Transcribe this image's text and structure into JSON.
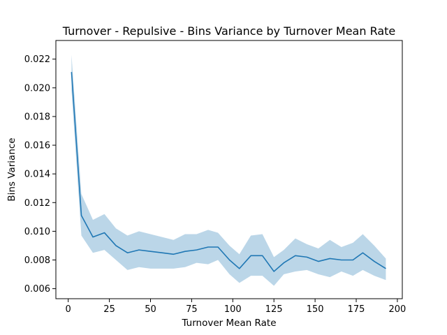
{
  "chart_data": {
    "type": "line",
    "title": "Turnover - Repulsive - Bins Variance by Turnover Mean Rate",
    "xlabel": "Turnover Mean Rate",
    "ylabel": "Bins Variance",
    "xlim": [
      -7.5,
      203
    ],
    "ylim": [
      0.0053,
      0.0233
    ],
    "x_ticks": [
      0,
      25,
      50,
      75,
      100,
      125,
      150,
      175,
      200
    ],
    "x_tick_labels": [
      "0",
      "25",
      "50",
      "75",
      "100",
      "125",
      "150",
      "175",
      "200"
    ],
    "y_ticks": [
      0.006,
      0.008,
      0.01,
      0.012,
      0.014,
      0.016,
      0.018,
      0.02,
      0.022
    ],
    "y_tick_labels": [
      "0.006",
      "0.008",
      "0.010",
      "0.012",
      "0.014",
      "0.016",
      "0.018",
      "0.020",
      "0.022"
    ],
    "grid": false,
    "line_color": "#1f77b4",
    "band_color": "#1f77b4",
    "series": [
      {
        "x": [
          2,
          8,
          15,
          22,
          29,
          36,
          43,
          50,
          57,
          64,
          71,
          78,
          85,
          91,
          98,
          104,
          111,
          118,
          125,
          131,
          138,
          145,
          152,
          159,
          166,
          173,
          179,
          186,
          193
        ],
        "y": [
          0.0211,
          0.0111,
          0.0096,
          0.0099,
          0.009,
          0.0085,
          0.0087,
          0.0086,
          0.0085,
          0.0084,
          0.0086,
          0.0087,
          0.0089,
          0.0089,
          0.008,
          0.0074,
          0.0083,
          0.0083,
          0.0072,
          0.0078,
          0.0083,
          0.0082,
          0.0079,
          0.0081,
          0.008,
          0.008,
          0.0085,
          0.0079,
          0.0074
        ],
        "y_lower": [
          0.0198,
          0.0097,
          0.0085,
          0.0087,
          0.008,
          0.0073,
          0.0075,
          0.0074,
          0.0074,
          0.0074,
          0.0075,
          0.0078,
          0.0077,
          0.008,
          0.007,
          0.0064,
          0.0069,
          0.0069,
          0.0062,
          0.007,
          0.0072,
          0.0073,
          0.007,
          0.0068,
          0.0072,
          0.0069,
          0.0073,
          0.0069,
          0.0066
        ],
        "y_upper": [
          0.0223,
          0.0126,
          0.0108,
          0.0112,
          0.0102,
          0.0097,
          0.01,
          0.0098,
          0.0096,
          0.0094,
          0.0098,
          0.0098,
          0.0101,
          0.0099,
          0.009,
          0.0084,
          0.0097,
          0.0098,
          0.0082,
          0.0087,
          0.0095,
          0.0091,
          0.0088,
          0.0094,
          0.0089,
          0.0092,
          0.0098,
          0.009,
          0.0081
        ]
      }
    ]
  }
}
